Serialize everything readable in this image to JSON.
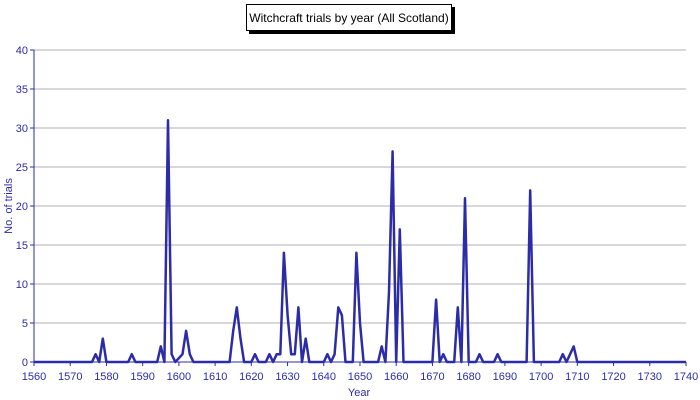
{
  "chart_data": {
    "type": "line",
    "title": "Witchcraft trials by year (All Scotland)",
    "xlabel": "Year",
    "ylabel": "No. of trials",
    "xlim": [
      1560,
      1740
    ],
    "ylim": [
      0,
      40
    ],
    "x_ticks": [
      1560,
      1570,
      1580,
      1590,
      1600,
      1610,
      1620,
      1630,
      1640,
      1650,
      1660,
      1670,
      1680,
      1690,
      1700,
      1710,
      1720,
      1730,
      1740
    ],
    "y_ticks": [
      0,
      5,
      10,
      15,
      20,
      25,
      30,
      35,
      40
    ],
    "grid": true,
    "colors": {
      "line": "#2c2ca8",
      "grid": "#b0b0b0",
      "axis": "#2c2ca8"
    },
    "series": [
      {
        "points": [
          [
            1560,
            0
          ],
          [
            1576,
            0
          ],
          [
            1577,
            1
          ],
          [
            1578,
            0
          ],
          [
            1579,
            3
          ],
          [
            1580,
            0
          ],
          [
            1586,
            0
          ],
          [
            1587,
            1
          ],
          [
            1588,
            0
          ],
          [
            1594,
            0
          ],
          [
            1595,
            2
          ],
          [
            1596,
            0
          ],
          [
            1597,
            31
          ],
          [
            1598,
            1
          ],
          [
            1599,
            0
          ],
          [
            1601,
            1
          ],
          [
            1602,
            4
          ],
          [
            1603,
            1
          ],
          [
            1604,
            0
          ],
          [
            1614,
            0
          ],
          [
            1615,
            4
          ],
          [
            1616,
            7
          ],
          [
            1617,
            3
          ],
          [
            1618,
            0
          ],
          [
            1620,
            0
          ],
          [
            1621,
            1
          ],
          [
            1622,
            0
          ],
          [
            1624,
            0
          ],
          [
            1625,
            1
          ],
          [
            1626,
            0
          ],
          [
            1627,
            1
          ],
          [
            1628,
            1
          ],
          [
            1629,
            14
          ],
          [
            1630,
            6
          ],
          [
            1631,
            1
          ],
          [
            1632,
            1
          ],
          [
            1633,
            7
          ],
          [
            1634,
            0
          ],
          [
            1635,
            3
          ],
          [
            1636,
            0
          ],
          [
            1640,
            0
          ],
          [
            1641,
            1
          ],
          [
            1642,
            0
          ],
          [
            1643,
            1
          ],
          [
            1644,
            7
          ],
          [
            1645,
            6
          ],
          [
            1646,
            0
          ],
          [
            1648,
            0
          ],
          [
            1649,
            14
          ],
          [
            1650,
            5
          ],
          [
            1651,
            0
          ],
          [
            1655,
            0
          ],
          [
            1656,
            2
          ],
          [
            1657,
            0
          ],
          [
            1658,
            9
          ],
          [
            1659,
            27
          ],
          [
            1660,
            0
          ],
          [
            1661,
            17
          ],
          [
            1662,
            0
          ],
          [
            1670,
            0
          ],
          [
            1671,
            8
          ],
          [
            1672,
            0
          ],
          [
            1673,
            1
          ],
          [
            1674,
            0
          ],
          [
            1676,
            0
          ],
          [
            1677,
            7
          ],
          [
            1678,
            0
          ],
          [
            1679,
            21
          ],
          [
            1680,
            0
          ],
          [
            1682,
            0
          ],
          [
            1683,
            1
          ],
          [
            1684,
            0
          ],
          [
            1687,
            0
          ],
          [
            1688,
            1
          ],
          [
            1689,
            0
          ],
          [
            1696,
            0
          ],
          [
            1697,
            22
          ],
          [
            1698,
            0
          ],
          [
            1705,
            0
          ],
          [
            1706,
            1
          ],
          [
            1707,
            0
          ],
          [
            1708,
            1
          ],
          [
            1709,
            2
          ],
          [
            1710,
            0
          ],
          [
            1740,
            0
          ]
        ]
      }
    ]
  }
}
